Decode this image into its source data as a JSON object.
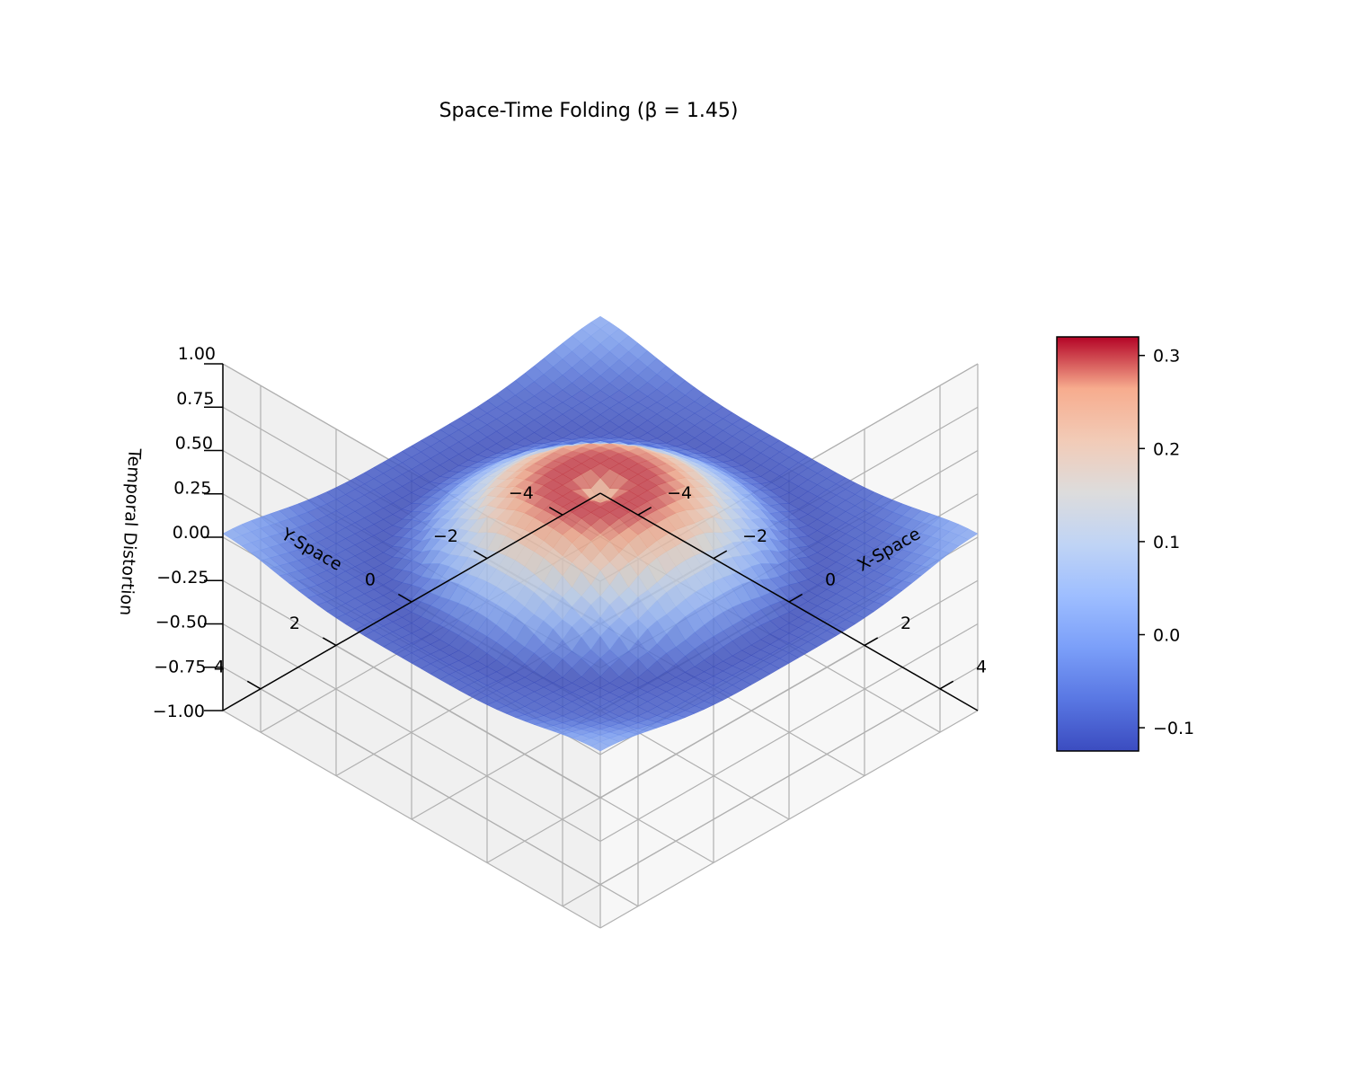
{
  "chart_data": {
    "type": "surface3d",
    "title": "Space-Time Folding (β = 1.45)",
    "xlabel": "X-Space",
    "ylabel": "Y-Space",
    "zlabel": "Temporal Distortion",
    "xlim": [
      -5,
      5
    ],
    "ylim": [
      -5,
      5
    ],
    "zlim": [
      -1,
      1
    ],
    "xticks": [
      "−4",
      "−2",
      "0",
      "2",
      "4"
    ],
    "xtick_values": [
      -4,
      -2,
      0,
      2,
      4
    ],
    "yticks": [
      "−4",
      "−2",
      "0",
      "2",
      "4"
    ],
    "ytick_values": [
      -4,
      -2,
      0,
      2,
      4
    ],
    "zticks": [
      "−1.00",
      "−0.75",
      "−0.50",
      "−0.25",
      "0.00",
      "0.25",
      "0.50",
      "0.75",
      "1.00"
    ],
    "ztick_values": [
      -1,
      -0.75,
      -0.5,
      -0.25,
      0,
      0.25,
      0.5,
      0.75,
      1
    ],
    "beta": 1.45,
    "colormap": "coolwarm",
    "grid": true,
    "view": {
      "elev": 30,
      "azim": -135
    },
    "surface_samples": {
      "r": [
        0,
        0.5,
        1.0,
        1.5,
        2.0,
        2.5,
        3.0,
        3.5,
        4.0,
        5.0,
        7.07
      ],
      "z": [
        0.2,
        0.3,
        0.3,
        0.27,
        0.2,
        0.1,
        0.02,
        -0.07,
        -0.12,
        -0.1,
        0.02
      ]
    },
    "colorbar": {
      "range": [
        -0.125,
        0.32
      ],
      "ticks": [
        "−0.1",
        "0.0",
        "0.1",
        "0.2",
        "0.3"
      ],
      "tick_values": [
        -0.1,
        0,
        0.1,
        0.2,
        0.3
      ]
    }
  }
}
